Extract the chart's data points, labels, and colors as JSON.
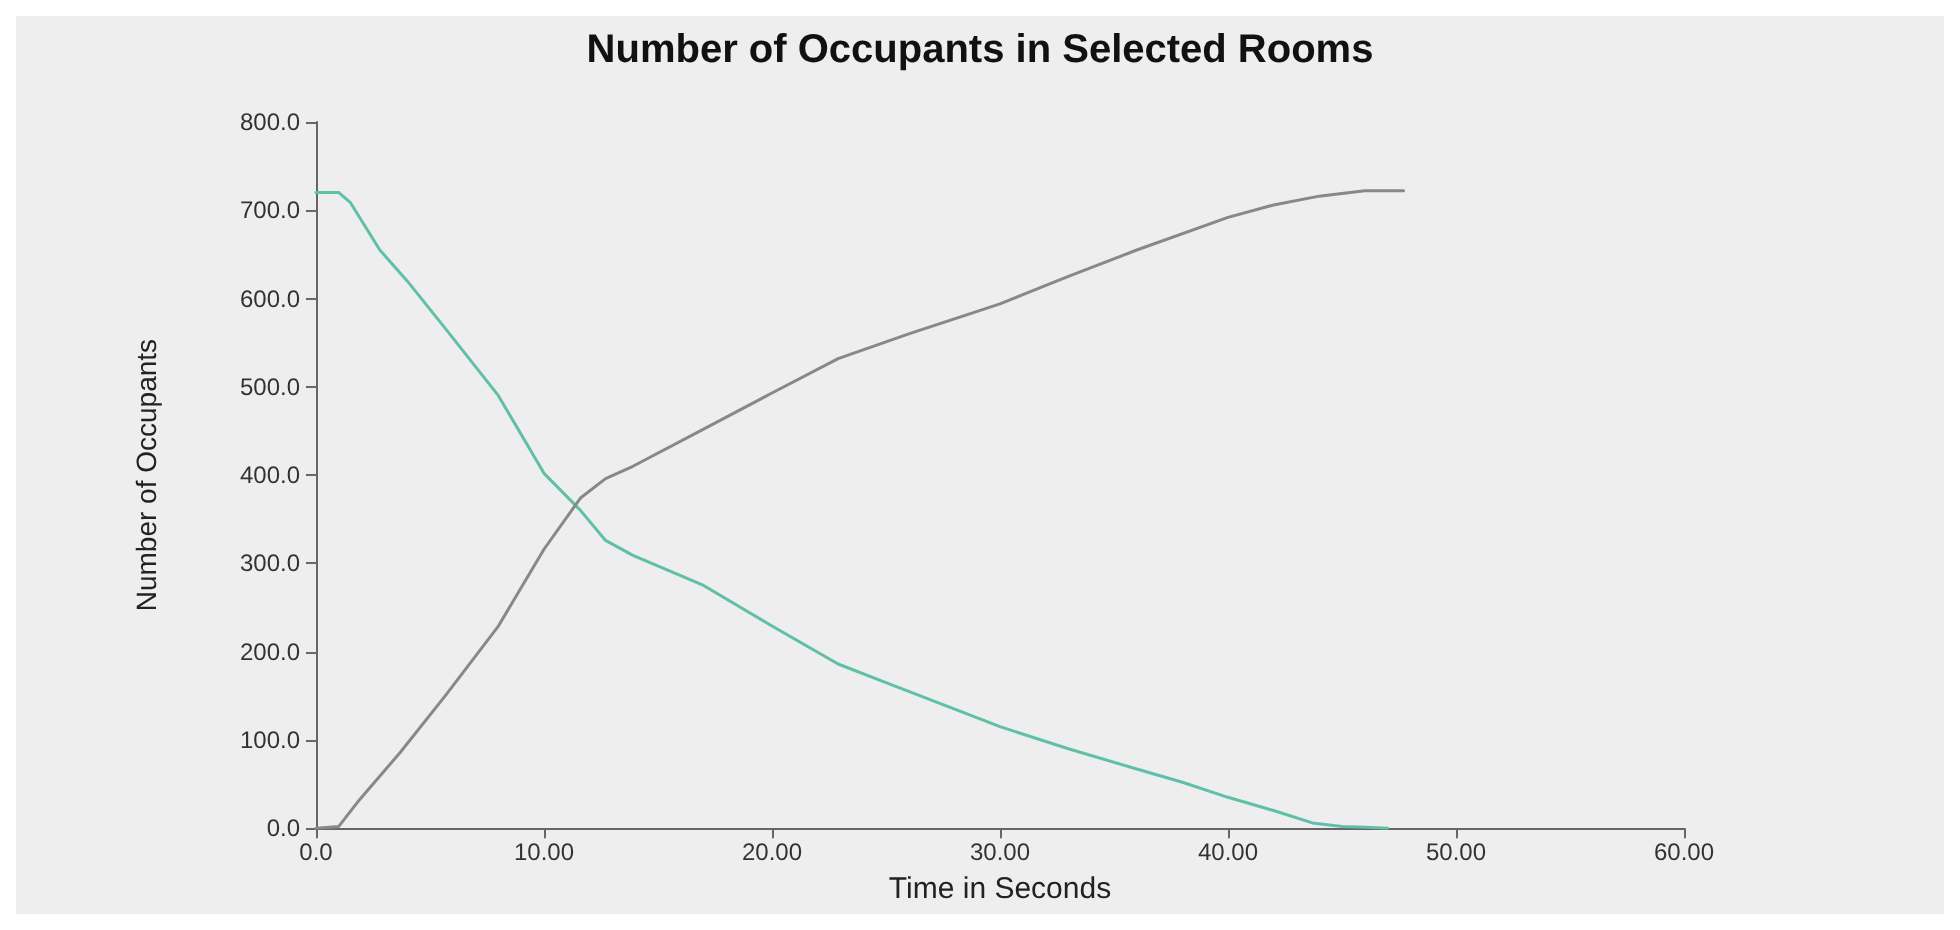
{
  "chart_data": {
    "type": "line",
    "title": "Number of Occupants in Selected Rooms",
    "xlabel": "Time in Seconds",
    "ylabel": "Number of Occupants",
    "xlim": [
      0,
      60
    ],
    "ylim": [
      0,
      800
    ],
    "xticks": [
      {
        "value": 0,
        "label": "0.0"
      },
      {
        "value": 10,
        "label": "10.00"
      },
      {
        "value": 20,
        "label": "20.00"
      },
      {
        "value": 30,
        "label": "30.00"
      },
      {
        "value": 40,
        "label": "40.00"
      },
      {
        "value": 50,
        "label": "50.00"
      },
      {
        "value": 60,
        "label": "60.00"
      }
    ],
    "yticks": [
      {
        "value": 0,
        "label": "0.0"
      },
      {
        "value": 100,
        "label": "100.0"
      },
      {
        "value": 200,
        "label": "200.0"
      },
      {
        "value": 300,
        "label": "300.0"
      },
      {
        "value": 400,
        "label": "400.0"
      },
      {
        "value": 500,
        "label": "500.0"
      },
      {
        "value": 600,
        "label": "600.0"
      },
      {
        "value": 700,
        "label": "700.0"
      },
      {
        "value": 800,
        "label": "800.0"
      }
    ],
    "grid": false,
    "marker": "none",
    "line_style": "solid",
    "series": [
      {
        "color": "#5fbfa8",
        "x": [
          0,
          1,
          1.5,
          2.8,
          4,
          5.8,
          8,
          10,
          11.6,
          12.7,
          13.9,
          17,
          20,
          22.9,
          25,
          30,
          33,
          36,
          38,
          40,
          42,
          43.7,
          45,
          46,
          47
        ],
        "values": [
          720,
          720,
          709,
          655,
          620,
          562,
          490,
          402,
          360,
          326,
          309,
          275,
          229,
          186,
          165,
          115,
          90,
          67,
          52,
          35,
          20,
          6,
          2,
          1,
          0
        ]
      },
      {
        "color": "#888888",
        "x": [
          0,
          1,
          1.9,
          3.7,
          5.7,
          8,
          10,
          11.6,
          12.7,
          13.9,
          17,
          20,
          22.9,
          26,
          30,
          33,
          36,
          40,
          42,
          44,
          46,
          47.7
        ],
        "values": [
          0,
          2,
          32,
          86,
          151,
          229,
          316,
          374,
          396,
          410,
          452,
          493,
          532,
          560,
          594,
          625,
          655,
          692,
          706,
          716,
          722,
          722
        ]
      }
    ]
  }
}
